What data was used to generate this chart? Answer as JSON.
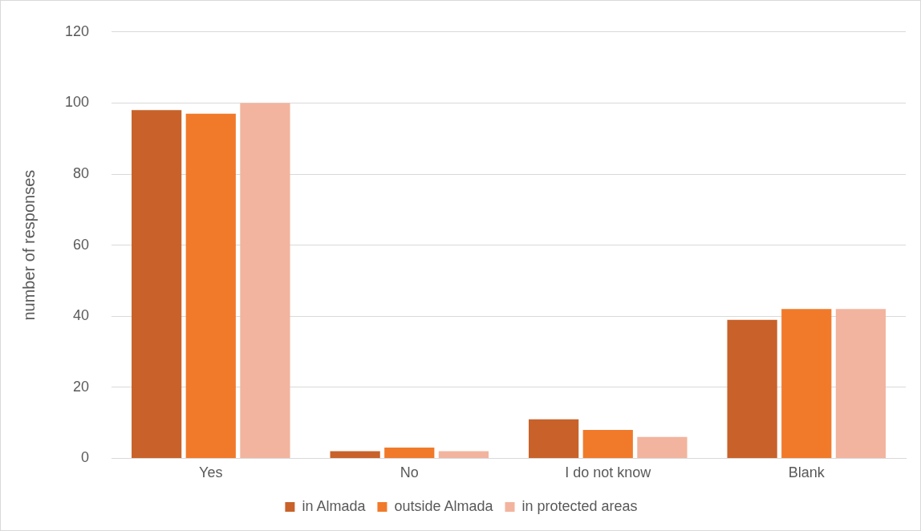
{
  "chart_data": {
    "type": "bar",
    "ylabel": "number of responses",
    "categories": [
      "Yes",
      "No",
      "I do not know",
      "Blank"
    ],
    "series": [
      {
        "name": "in Almada",
        "color": "#c8622a",
        "values": [
          98,
          2,
          11,
          39
        ]
      },
      {
        "name": "outside Almada",
        "color": "#f07a2a",
        "values": [
          97,
          3,
          8,
          42
        ]
      },
      {
        "name": "in protected areas",
        "color": "#f2b49e",
        "values": [
          100,
          2,
          6,
          42
        ]
      }
    ],
    "ylim": [
      0,
      120
    ],
    "yticks": [
      0,
      20,
      40,
      60,
      80,
      100,
      120
    ],
    "grid": "y",
    "legend": "bottom"
  }
}
